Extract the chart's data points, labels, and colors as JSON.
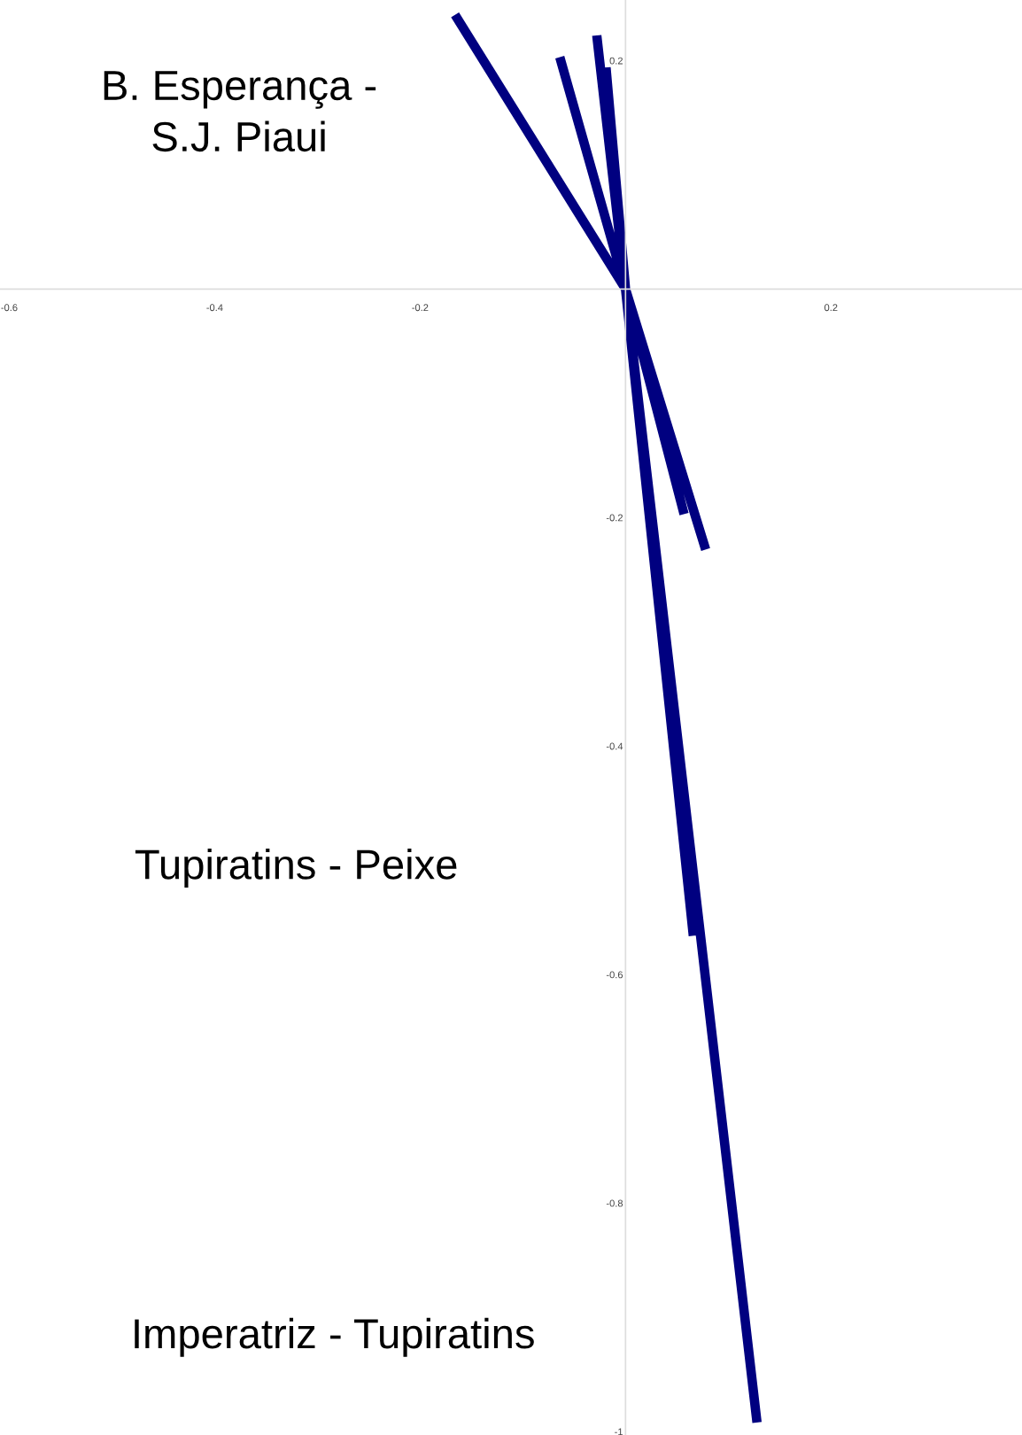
{
  "chart_data": {
    "type": "line",
    "xlim": [
      -0.609,
      0.386
    ],
    "ylim": [
      -1.003,
      0.253
    ],
    "xticks": [
      -0.6,
      -0.4,
      -0.2,
      0.2
    ],
    "yticks": [
      0.2,
      -0.2,
      -0.4,
      -0.6,
      -0.8,
      -1
    ],
    "grid": false,
    "marker": "none",
    "line_style": "solid",
    "series": [
      {
        "color": "#000080",
        "x": [
          -0.166,
          0,
          0.078,
          null,
          -0.064,
          0,
          0.057,
          null,
          -0.028,
          0,
          0.128,
          null,
          -0.019,
          0,
          0.066
        ],
        "values": [
          0.24,
          0,
          -0.228,
          null,
          0.203,
          0,
          -0.197,
          null,
          0.222,
          0,
          -0.992,
          null,
          0.194,
          0,
          -0.566
        ]
      }
    ],
    "annotations": [
      "B. Esperança -\nS.J. Piaui",
      "Tupiratins - Peixe",
      "Imperatriz - Tupiratins"
    ]
  }
}
